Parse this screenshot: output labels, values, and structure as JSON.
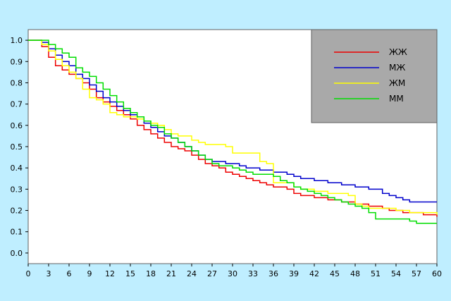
{
  "chart_data": {
    "type": "line",
    "title": "",
    "xlabel": "",
    "ylabel": "",
    "xlim": [
      0,
      60
    ],
    "ylim": [
      -0.05,
      1.05
    ],
    "x_ticks": [
      "0",
      "3",
      "6",
      "9",
      "12",
      "15",
      "18",
      "21",
      "24",
      "27",
      "30",
      "33",
      "36",
      "39",
      "42",
      "45",
      "48",
      "51",
      "54",
      "57",
      "60"
    ],
    "y_ticks": [
      "0.0",
      "0.1",
      "0.2",
      "0.3",
      "0.4",
      "0.5",
      "0.6",
      "0.7",
      "0.8",
      "0.9",
      "1.0"
    ],
    "grid": "dashed",
    "legend_position": "top-right",
    "background": "#bfeeff",
    "plot_background": "#ffffff",
    "legend_background": "#a9a9a9",
    "series": [
      {
        "name": "ЖЖ",
        "color": "#ee0000",
        "x": [
          0,
          2,
          3,
          4,
          5,
          6,
          7,
          8,
          9,
          10,
          11,
          12,
          13,
          14,
          15,
          16,
          17,
          18,
          19,
          20,
          21,
          22,
          23,
          24,
          25,
          26,
          27,
          28,
          29,
          30,
          31,
          32,
          33,
          34,
          35,
          36,
          37,
          38,
          39,
          40,
          41,
          42,
          43,
          44,
          45,
          46,
          47,
          48,
          49,
          50,
          51,
          52,
          53,
          54,
          55,
          56,
          57,
          58,
          59,
          60
        ],
        "y": [
          1.0,
          0.97,
          0.92,
          0.88,
          0.86,
          0.84,
          0.82,
          0.8,
          0.77,
          0.73,
          0.71,
          0.69,
          0.67,
          0.65,
          0.63,
          0.6,
          0.58,
          0.56,
          0.54,
          0.52,
          0.5,
          0.49,
          0.48,
          0.46,
          0.44,
          0.42,
          0.41,
          0.4,
          0.38,
          0.37,
          0.36,
          0.35,
          0.34,
          0.33,
          0.32,
          0.31,
          0.31,
          0.3,
          0.28,
          0.27,
          0.27,
          0.26,
          0.26,
          0.25,
          0.25,
          0.24,
          0.24,
          0.23,
          0.23,
          0.22,
          0.22,
          0.21,
          0.2,
          0.2,
          0.19,
          0.19,
          0.19,
          0.18,
          0.18,
          0.17
        ]
      },
      {
        "name": "МЖ",
        "color": "#0000cc",
        "x": [
          0,
          2,
          3,
          4,
          5,
          6,
          7,
          8,
          9,
          10,
          11,
          12,
          13,
          14,
          15,
          16,
          17,
          18,
          19,
          20,
          21,
          22,
          23,
          24,
          25,
          26,
          27,
          28,
          29,
          30,
          31,
          32,
          33,
          34,
          35,
          36,
          37,
          38,
          39,
          40,
          41,
          42,
          43,
          44,
          45,
          46,
          47,
          48,
          49,
          50,
          51,
          52,
          53,
          54,
          55,
          56,
          57,
          58,
          59,
          60
        ],
        "y": [
          1.0,
          0.99,
          0.96,
          0.93,
          0.9,
          0.88,
          0.84,
          0.82,
          0.79,
          0.76,
          0.73,
          0.71,
          0.69,
          0.67,
          0.65,
          0.63,
          0.61,
          0.59,
          0.57,
          0.55,
          0.54,
          0.52,
          0.5,
          0.48,
          0.46,
          0.44,
          0.43,
          0.43,
          0.42,
          0.42,
          0.41,
          0.4,
          0.4,
          0.39,
          0.39,
          0.38,
          0.38,
          0.37,
          0.36,
          0.35,
          0.35,
          0.34,
          0.34,
          0.33,
          0.33,
          0.32,
          0.32,
          0.31,
          0.31,
          0.3,
          0.3,
          0.28,
          0.27,
          0.26,
          0.25,
          0.24,
          0.24,
          0.24,
          0.24,
          0.24
        ]
      },
      {
        "name": "ЖМ",
        "color": "#ffff00",
        "x": [
          0,
          2,
          3,
          4,
          5,
          6,
          7,
          8,
          9,
          10,
          11,
          12,
          13,
          14,
          15,
          16,
          17,
          18,
          19,
          20,
          21,
          22,
          23,
          24,
          25,
          26,
          27,
          28,
          29,
          30,
          31,
          32,
          33,
          34,
          35,
          36,
          37,
          38,
          39,
          40,
          41,
          42,
          43,
          44,
          45,
          46,
          47,
          48,
          49,
          50,
          51,
          52,
          53,
          54,
          55,
          56,
          57,
          58,
          59,
          60
        ],
        "y": [
          1.0,
          0.98,
          0.95,
          0.91,
          0.88,
          0.85,
          0.82,
          0.77,
          0.73,
          0.72,
          0.7,
          0.66,
          0.65,
          0.64,
          0.64,
          0.63,
          0.62,
          0.61,
          0.6,
          0.58,
          0.56,
          0.55,
          0.55,
          0.53,
          0.52,
          0.51,
          0.51,
          0.51,
          0.5,
          0.47,
          0.47,
          0.47,
          0.47,
          0.43,
          0.42,
          0.33,
          0.33,
          0.33,
          0.31,
          0.3,
          0.3,
          0.29,
          0.29,
          0.28,
          0.28,
          0.28,
          0.27,
          0.23,
          0.22,
          0.21,
          0.21,
          0.21,
          0.21,
          0.2,
          0.2,
          0.19,
          0.19,
          0.19,
          0.19,
          0.18
        ]
      },
      {
        "name": "ММ",
        "color": "#00dd00",
        "x": [
          0,
          2,
          3,
          4,
          5,
          6,
          7,
          8,
          9,
          10,
          11,
          12,
          13,
          14,
          15,
          16,
          17,
          18,
          19,
          20,
          21,
          22,
          23,
          24,
          25,
          26,
          27,
          28,
          29,
          30,
          31,
          32,
          33,
          34,
          35,
          36,
          37,
          38,
          39,
          40,
          41,
          42,
          43,
          44,
          45,
          46,
          47,
          48,
          49,
          50,
          51,
          52,
          53,
          54,
          55,
          56,
          57,
          58,
          59,
          60
        ],
        "y": [
          1.0,
          1.0,
          0.98,
          0.96,
          0.94,
          0.92,
          0.87,
          0.85,
          0.83,
          0.8,
          0.77,
          0.74,
          0.71,
          0.68,
          0.66,
          0.64,
          0.62,
          0.6,
          0.59,
          0.56,
          0.54,
          0.52,
          0.5,
          0.48,
          0.46,
          0.44,
          0.42,
          0.41,
          0.41,
          0.4,
          0.39,
          0.38,
          0.37,
          0.37,
          0.37,
          0.36,
          0.34,
          0.33,
          0.31,
          0.3,
          0.29,
          0.28,
          0.27,
          0.26,
          0.25,
          0.24,
          0.23,
          0.22,
          0.21,
          0.19,
          0.16,
          0.16,
          0.16,
          0.16,
          0.16,
          0.15,
          0.14,
          0.14,
          0.14,
          0.14
        ]
      }
    ]
  }
}
